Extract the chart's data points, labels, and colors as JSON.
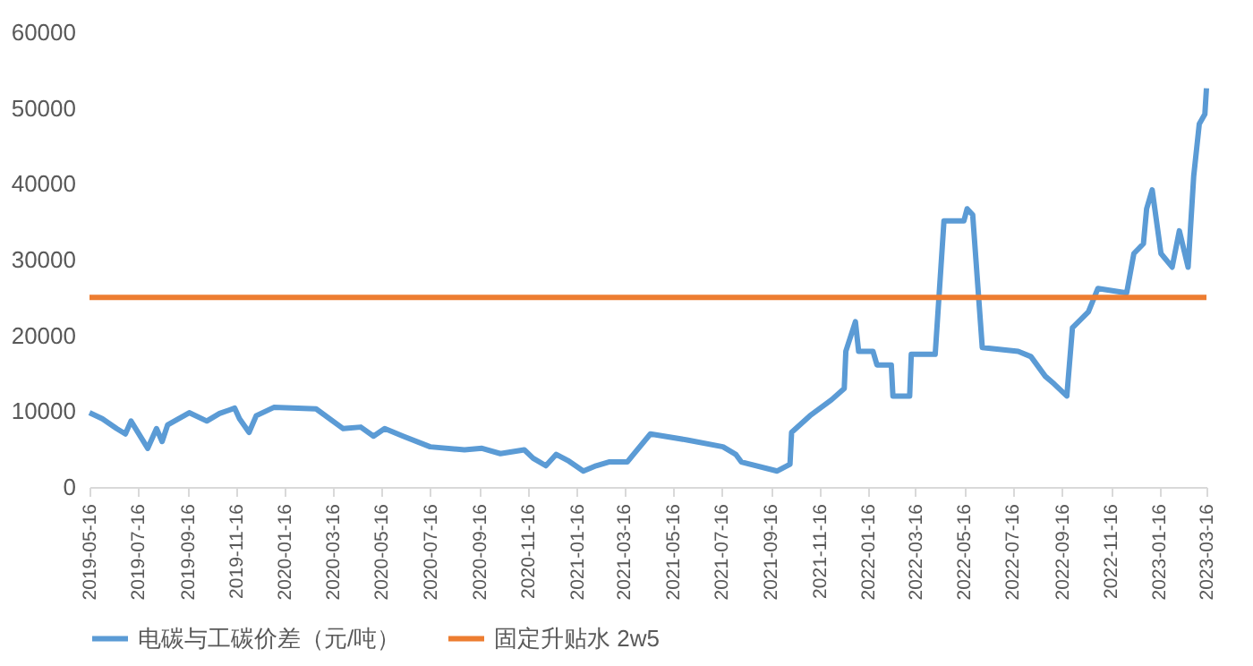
{
  "chart_data": {
    "type": "line",
    "legend": "bottom",
    "grid": false,
    "xlim": [
      "2019-05-16",
      "2023-03-16"
    ],
    "xticks": [
      "2019-05-16",
      "2019-07-16",
      "2019-09-16",
      "2019-11-16",
      "2020-01-16",
      "2020-03-16",
      "2020-05-16",
      "2020-07-16",
      "2020-09-16",
      "2020-11-16",
      "2021-01-16",
      "2021-03-16",
      "2021-05-16",
      "2021-07-16",
      "2021-09-16",
      "2021-11-16",
      "2022-01-16",
      "2022-03-16",
      "2022-05-16",
      "2022-07-16",
      "2022-09-16",
      "2022-11-16",
      "2023-01-16",
      "2023-03-16"
    ],
    "ylim": [
      0,
      60000
    ],
    "yticks": [
      0,
      10000,
      20000,
      30000,
      40000,
      50000,
      60000
    ],
    "series": [
      {
        "name": "电碳与工碳价差（元/吨）",
        "color": "#5b9bd5",
        "x": [
          "2019-05-16",
          "2019-06-01",
          "2019-06-19",
          "2019-06-30",
          "2019-07-07",
          "2019-07-28",
          "2019-08-08",
          "2019-08-15",
          "2019-08-22",
          "2019-09-18",
          "2019-10-10",
          "2019-10-26",
          "2019-11-14",
          "2019-11-20",
          "2019-12-02",
          "2019-12-11",
          "2020-01-02",
          "2020-02-24",
          "2020-03-29",
          "2020-04-20",
          "2020-05-06",
          "2020-05-20",
          "2020-06-12",
          "2020-07-16",
          "2020-08-28",
          "2020-09-19",
          "2020-10-12",
          "2020-11-11",
          "2020-11-22",
          "2020-12-08",
          "2020-12-21",
          "2021-01-06",
          "2021-01-24",
          "2021-02-09",
          "2021-02-25",
          "2021-03-20",
          "2021-04-18",
          "2021-06-03",
          "2021-07-18",
          "2021-08-03",
          "2021-08-10",
          "2021-09-24",
          "2021-10-10",
          "2021-10-12",
          "2021-11-04",
          "2021-12-01",
          "2021-12-17",
          "2021-12-19",
          "2021-12-31",
          "2022-01-04",
          "2022-01-22",
          "2022-01-27",
          "2022-02-14",
          "2022-02-16",
          "2022-03-09",
          "2022-03-11",
          "2022-04-10",
          "2022-04-21",
          "2022-05-16",
          "2022-05-20",
          "2022-05-27",
          "2022-06-08",
          "2022-07-23",
          "2022-08-08",
          "2022-08-26",
          "2022-09-06",
          "2022-09-22",
          "2022-09-29",
          "2022-10-19",
          "2022-10-31",
          "2022-12-06",
          "2022-12-15",
          "2022-12-27",
          "2022-12-31",
          "2023-01-07",
          "2023-01-18",
          "2023-02-01",
          "2023-02-10",
          "2023-02-21",
          "2023-02-28",
          "2023-03-07",
          "2023-03-14",
          "2023-03-16"
        ],
        "values": [
          9800,
          9000,
          7700,
          7000,
          8700,
          5100,
          7700,
          6000,
          8200,
          9800,
          8700,
          9700,
          10400,
          9000,
          7200,
          9400,
          10500,
          10300,
          7700,
          7900,
          6700,
          7700,
          6700,
          5300,
          4900,
          5100,
          4400,
          4900,
          3800,
          2800,
          4300,
          3400,
          2100,
          2800,
          3300,
          3300,
          7000,
          6200,
          5300,
          4300,
          3300,
          2100,
          3000,
          7200,
          9400,
          11500,
          13000,
          17900,
          21800,
          17900,
          17900,
          16100,
          16100,
          12000,
          12000,
          17500,
          17500,
          35100,
          35100,
          36700,
          35900,
          18400,
          17900,
          17200,
          14600,
          13600,
          12000,
          21000,
          23100,
          26200,
          25600,
          30800,
          32100,
          36700,
          39200,
          30800,
          29000,
          33800,
          29000,
          41000,
          47900,
          49200,
          52600
        ]
      },
      {
        "name": "固定升贴水 2w5",
        "color": "#ed7d31",
        "x": [
          "2019-05-16",
          "2023-03-16"
        ],
        "values": [
          25000,
          25000
        ]
      }
    ]
  }
}
